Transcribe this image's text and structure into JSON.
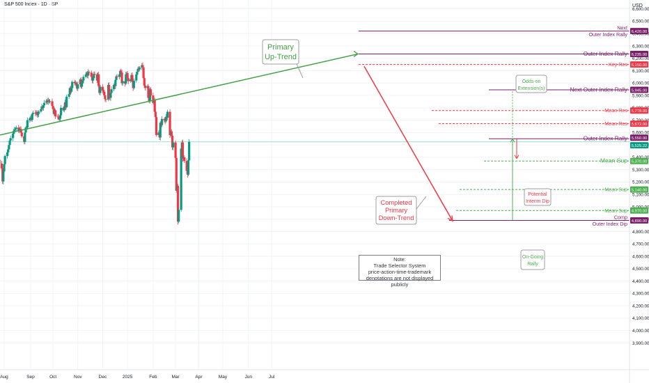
{
  "header": {
    "title": "S&P 500 Index · 1D · SP",
    "currency": "USD"
  },
  "chart_data": {
    "type": "candlestick",
    "ylim": [
      3850,
      6710
    ],
    "y_ticks": [
      "6,600.00",
      "6,500.00",
      "6,400.00",
      "6,300.00",
      "6,200.00",
      "6,100.00",
      "6,000.00",
      "5,900.00",
      "5,800.00",
      "5,700.00",
      "5,600.00",
      "5,500.00",
      "5,400.00",
      "5,300.00",
      "5,200.00",
      "5,100.00",
      "5,000.00",
      "4,900.00",
      "4,800.00",
      "4,700.00",
      "4,600.00",
      "4,500.00",
      "4,400.00",
      "4,300.00",
      "4,200.00",
      "4,100.00",
      "4,000.00",
      "3,900.00"
    ],
    "x_ticks": [
      "Aug",
      "Sep",
      "Oct",
      "Nov",
      "Dec",
      "2025",
      "Feb",
      "Mar",
      "Apr",
      "May",
      "Jun",
      "Jul"
    ],
    "x_tick_dates": [
      "2024-08-01",
      "2024-09-03",
      "2024-10-01",
      "2024-11-01",
      "2024-12-02",
      "2025-01-02",
      "2025-02-03",
      "2025-03-03",
      "2025-04-01",
      "2025-05-01",
      "2025-06-02",
      "2025-07-01"
    ],
    "x_range_dates": [
      "2024-07-22",
      "2025-07-31"
    ],
    "closes": [
      5500,
      5470,
      5420,
      5380,
      5350,
      5310,
      5205,
      5285,
      5345,
      5410,
      5440,
      5465,
      5500,
      5535,
      5555,
      5590,
      5615,
      5625,
      5630,
      5640,
      5610,
      5632,
      5628,
      5600,
      5570,
      5525,
      5600,
      5640,
      5640,
      5700,
      5715,
      5720,
      5703,
      5750,
      5760,
      5755,
      5765,
      5740,
      5750,
      5770,
      5790,
      5810,
      5800,
      5820,
      5840,
      5860,
      5848,
      5860,
      5850,
      5853,
      5815,
      5790,
      5750,
      5780,
      5730,
      5728,
      5710,
      5712,
      5740,
      5800,
      5780,
      5810,
      5845,
      5805,
      5890,
      5910,
      5960,
      5930,
      5960,
      6010,
      6000,
      6000,
      5990,
      5955,
      5990,
      6030,
      5970,
      6000,
      6020,
      6050,
      6070,
      6080,
      6060,
      6090,
      6084,
      6050,
      6020,
      6040,
      6074,
      6070,
      6020,
      6070,
      5975,
      5920,
      5970,
      5940,
      5930,
      5900,
      5870,
      5867,
      5985,
      5885,
      5880,
      5920,
      5950,
      5985,
      5975,
      6025,
      6055,
      6050,
      6070,
      6100,
      6085,
      5998,
      6015,
      5995,
      6070,
      6080,
      6040,
      6015,
      6030,
      6065,
      6010,
      5960,
      6020,
      6070,
      6090,
      6115,
      6110,
      6125,
      6145,
      6125,
      6040,
      5980,
      5960,
      5975,
      5880,
      5855,
      5950,
      5900,
      5840,
      5865,
      5768,
      5725,
      5580,
      5600,
      5560,
      5680,
      5660,
      5710,
      5700,
      5690,
      5728,
      5720,
      5768,
      5580,
      5610,
      5575,
      5480,
      5520,
      5395,
      5130,
      5170,
      4880,
      4975,
      5470,
      5520,
      5390,
      5400,
      5370,
      5290,
      5260,
      5375,
      5525
    ],
    "key_levels": [
      {
        "label": "Next Outer Index Rally",
        "value": 6420
      },
      {
        "label": "Outer Index Rally",
        "value": 6235
      },
      {
        "label": "Key Res",
        "value": 6150
      },
      {
        "label": "Next Outer Index Rally",
        "value": 5945
      },
      {
        "label": "Mean Res",
        "value": 5778
      },
      {
        "label": "Mean Res",
        "value": 5672
      },
      {
        "label": "Outer Index Rally",
        "value": 5550
      },
      {
        "label": "Last",
        "value": 5525.22
      },
      {
        "label": "Mean Sup",
        "value": 5370
      },
      {
        "label": "Mean Sup",
        "value": 5140
      },
      {
        "label": "Mean Sup",
        "value": 4970
      },
      {
        "label": "Comp Outer Index Dip",
        "value": 4890
      }
    ],
    "grid": true
  },
  "labels": {
    "levels": [
      {
        "text": "Next",
        "value": 6420,
        "color": "#7b1e6a"
      },
      {
        "text": "Outer Index Rally",
        "value": 6420,
        "color": "#7b1e6a"
      },
      {
        "text": "Outer Index Rally",
        "value": 6235,
        "color": "#7b1e6a"
      },
      {
        "text": "Key Res",
        "value": 6150,
        "color": "#f23645"
      },
      {
        "text": "Next Outer Index Rally",
        "value": 5945,
        "color": "#7b1e6a"
      },
      {
        "text": "Mean Res",
        "value": 5778,
        "color": "#f23645"
      },
      {
        "text": "Mean Res",
        "value": 5672,
        "color": "#f23645"
      },
      {
        "text": "Outer Index Rally",
        "value": 5550,
        "color": "#7b1e6a"
      },
      {
        "text": "Mean Sup",
        "value": 5370,
        "color": "#4caf50"
      },
      {
        "text": "Mean Sup",
        "value": 5140,
        "color": "#4caf50"
      },
      {
        "text": "Mean Sup",
        "value": 4970,
        "color": "#4caf50"
      },
      {
        "text": "Comp",
        "value": 4890,
        "color": "#7b1e6a"
      },
      {
        "text": "Outer Index Dip",
        "value": 4890,
        "color": "#7b1e6a"
      }
    ],
    "price_tags": [
      {
        "text": "6,420.00",
        "value": 6420,
        "color": "#7b1e6a"
      },
      {
        "text": "6,235.00",
        "value": 6235,
        "color": "#7b1e6a"
      },
      {
        "text": "6,150.00",
        "value": 6150,
        "color": "#f23645"
      },
      {
        "text": "5,945.00",
        "value": 5945,
        "color": "#7b1e6a"
      },
      {
        "text": "5,778.00",
        "value": 5778,
        "color": "#f23645"
      },
      {
        "text": "5,672.00",
        "value": 5672,
        "color": "#f23645"
      },
      {
        "text": "5,550.00",
        "value": 5550,
        "color": "#7b1e6a"
      },
      {
        "text": "5,525.22",
        "value": 5525.22,
        "color": "#089981"
      },
      {
        "text": "5,370.00",
        "value": 5370,
        "color": "#4caf50"
      },
      {
        "text": "5,140.00",
        "value": 5140,
        "color": "#4caf50"
      },
      {
        "text": "4,970.00",
        "value": 4970,
        "color": "#4caf50"
      },
      {
        "text": "4,890.00",
        "value": 4890,
        "color": "#7b1e6a"
      }
    ],
    "primary_uptrend": [
      "Primary",
      "Up-Trend"
    ],
    "completed_downtrend": [
      "Completed",
      "Primary",
      "Down-Trend"
    ],
    "odds_on": [
      "Odds-on",
      "Extension(s)"
    ],
    "potential_dip": [
      "Potential",
      "Interim Dip"
    ],
    "ongoing_rally": [
      "On-Going",
      "Rally"
    ],
    "note": [
      "Note:",
      "Trade Selector System",
      "price-action-time-trademark",
      "denotations are not displayed publicly"
    ]
  },
  "colors": {
    "up": "#089981",
    "down": "#f23645",
    "level_purple": "#7b1e6a",
    "support_green": "#4caf50",
    "trend_green": "#43a047",
    "trend_red": "#f23645"
  }
}
